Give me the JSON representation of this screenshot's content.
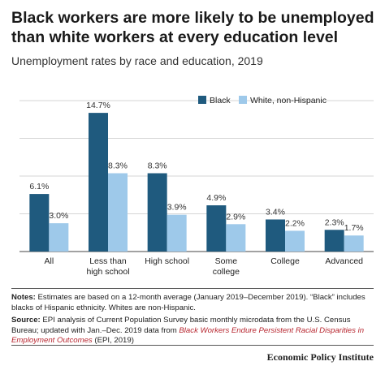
{
  "title": "Black workers are more likely to be unemployed than white workers at every education level",
  "subtitle": "Unemployment rates by race and education, 2019",
  "chart_data": {
    "type": "bar",
    "title": "Black workers are more likely to be unemployed than white workers at every education level",
    "subtitle": "Unemployment rates by race and education, 2019",
    "categories": [
      [
        "All"
      ],
      [
        "Less than",
        "high school"
      ],
      [
        "High school"
      ],
      [
        "Some",
        "college"
      ],
      [
        "College"
      ],
      [
        "Advanced"
      ]
    ],
    "series": [
      {
        "name": "Black",
        "color": "#1f5a7e",
        "values": [
          6.1,
          14.7,
          8.3,
          4.9,
          3.4,
          2.3
        ],
        "labels": [
          "6.1%",
          "14.7%",
          "8.3%",
          "4.9%",
          "3.4%",
          "2.3%"
        ]
      },
      {
        "name": "White, non-Hispanic",
        "color": "#9ec9ea",
        "values": [
          3.0,
          8.3,
          3.9,
          2.9,
          2.2,
          1.7
        ],
        "labels": [
          "3.0%",
          "8.3%",
          "3.9%",
          "2.9%",
          "2.2%",
          "1.7%"
        ]
      }
    ],
    "ylim": [
      0,
      16
    ],
    "grid": true,
    "legend_position": "top-right",
    "xlabel": "",
    "ylabel": ""
  },
  "notes": {
    "notes_label": "Notes:",
    "notes_text": " Estimates are based on a 12-month average (January 2019–December 2019). “Black” includes blacks of Hispanic ethnicity. Whites are non-Hispanic.",
    "source_label": "Source:",
    "source_text": " EPI analysis of Current Population Survey basic monthly microdata from the U.S. Census Bureau; updated with Jan.–Dec. 2019 data from ",
    "source_link": "Black Workers Endure Persistent Racial Disparities in Employment Outcomes",
    "source_tail": " (EPI, 2019)"
  },
  "brand": "Economic Policy Institute",
  "colors": {
    "grid": "#d6d6d6",
    "axis": "#444444"
  }
}
